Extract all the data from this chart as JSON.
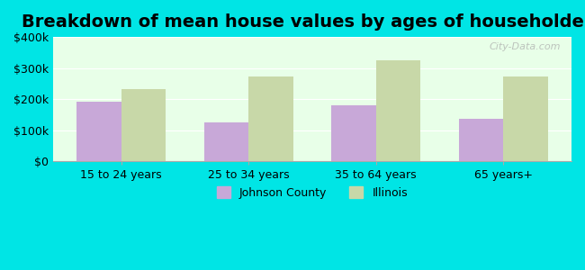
{
  "title": "Breakdown of mean house values by ages of householders",
  "categories": [
    "15 to 24 years",
    "25 to 34 years",
    "35 to 64 years",
    "65 years+"
  ],
  "johnson_county": [
    192000,
    125000,
    182000,
    138000
  ],
  "illinois": [
    232000,
    273000,
    325000,
    272000
  ],
  "johnson_color": "#c8a8d8",
  "illinois_color": "#c8d8a8",
  "ylim": [
    0,
    400000
  ],
  "yticks": [
    0,
    100000,
    200000,
    300000,
    400000
  ],
  "ytick_labels": [
    "$0",
    "$100k",
    "$200k",
    "$300k",
    "$400k"
  ],
  "background_color": "#e8ffe8",
  "outer_background": "#00e5e5",
  "legend_labels": [
    "Johnson County",
    "Illinois"
  ],
  "bar_width": 0.35,
  "title_fontsize": 14,
  "watermark": "City-Data.com"
}
